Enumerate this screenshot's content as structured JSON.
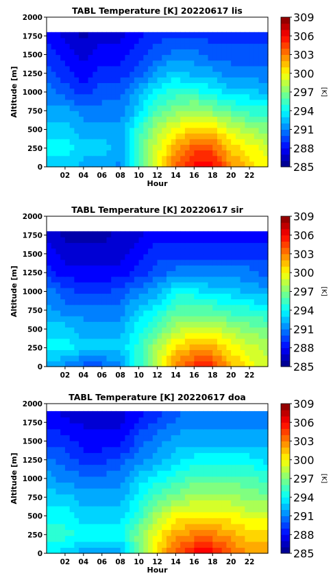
{
  "chart_data": [
    {
      "type": "heatmap",
      "title": "TABL Temperature [K]   20220617  lis",
      "xlabel": "Hour",
      "ylabel": "Altitude [m]",
      "xlim": [
        0,
        24
      ],
      "ylim": [
        0,
        2000
      ],
      "x_ticks": [
        "02",
        "04",
        "06",
        "08",
        "10",
        "12",
        "14",
        "16",
        "18",
        "20",
        "22"
      ],
      "y_ticks": [
        "0",
        "250",
        "500",
        "750",
        "1000",
        "1250",
        "1500",
        "1750",
        "2000"
      ],
      "data_top_altitude": 1800,
      "colorbar": {
        "label": "[K]",
        "min": 285,
        "max": 309,
        "ticks": [
          "285",
          "288",
          "291",
          "294",
          "297",
          "300",
          "303",
          "306",
          "309"
        ]
      },
      "values": {
        "hours": [
          0,
          2,
          4,
          6,
          8,
          10,
          12,
          14,
          16,
          18,
          20,
          22,
          24
        ],
        "altitudes": [
          0,
          250,
          500,
          750,
          1000,
          1250,
          1500,
          1800
        ],
        "temperature_K": [
          [
            293,
            293,
            292,
            292,
            291,
            296,
            300,
            304,
            306,
            306,
            303,
            301,
            300
          ],
          [
            294,
            294,
            293,
            293,
            292,
            296,
            299,
            302,
            304,
            304,
            301,
            300,
            299
          ],
          [
            293,
            293,
            292,
            292,
            292,
            295,
            298,
            300,
            301,
            301,
            299,
            298,
            297
          ],
          [
            292,
            292,
            291,
            291,
            291,
            293,
            296,
            297,
            298,
            297,
            296,
            295,
            295
          ],
          [
            291,
            290,
            289,
            290,
            290,
            292,
            294,
            295,
            295,
            294,
            293,
            293,
            292
          ],
          [
            290,
            289,
            288,
            289,
            289,
            290,
            292,
            293,
            292,
            292,
            291,
            291,
            291
          ],
          [
            289,
            288,
            287,
            288,
            288,
            289,
            290,
            291,
            291,
            290,
            290,
            290,
            290
          ],
          [
            288,
            287,
            286,
            287,
            287,
            288,
            289,
            289,
            289,
            289,
            289,
            289,
            289
          ]
        ]
      }
    },
    {
      "type": "heatmap",
      "title": "TABL Temperature [K]   20220617  sir",
      "xlabel": "",
      "ylabel": "Altitude [m]",
      "xlim": [
        0,
        24
      ],
      "ylim": [
        0,
        2000
      ],
      "x_ticks": [
        "02",
        "04",
        "06",
        "08",
        "10",
        "12",
        "14",
        "16",
        "18",
        "20",
        "22"
      ],
      "y_ticks": [
        "0",
        "250",
        "500",
        "750",
        "1000",
        "1250",
        "1500",
        "1750",
        "2000"
      ],
      "data_top_altitude": 1800,
      "colorbar": {
        "label": "[K]",
        "min": 285,
        "max": 309,
        "ticks": [
          "285",
          "288",
          "291",
          "294",
          "297",
          "300",
          "303",
          "306",
          "309"
        ]
      },
      "values": {
        "hours": [
          0,
          2,
          4,
          6,
          8,
          10,
          12,
          14,
          16,
          18,
          20,
          22,
          24
        ],
        "altitudes": [
          0,
          250,
          500,
          750,
          1000,
          1250,
          1500,
          1800
        ],
        "temperature_K": [
          [
            292,
            291,
            290,
            290,
            291,
            295,
            299,
            303,
            305,
            305,
            302,
            300,
            299
          ],
          [
            294,
            294,
            293,
            293,
            293,
            295,
            298,
            301,
            302,
            302,
            300,
            299,
            298
          ],
          [
            293,
            293,
            292,
            292,
            292,
            294,
            296,
            298,
            299,
            299,
            298,
            297,
            297
          ],
          [
            292,
            291,
            291,
            291,
            291,
            293,
            294,
            296,
            296,
            296,
            295,
            295,
            294
          ],
          [
            291,
            290,
            289,
            289,
            290,
            291,
            292,
            294,
            294,
            293,
            293,
            292,
            292
          ],
          [
            289,
            288,
            288,
            288,
            288,
            289,
            290,
            291,
            291,
            291,
            291,
            291,
            290
          ],
          [
            288,
            287,
            287,
            287,
            287,
            288,
            289,
            289,
            289,
            289,
            289,
            289,
            289
          ],
          [
            287,
            286,
            286,
            286,
            287,
            287,
            288,
            288,
            288,
            288,
            288,
            288,
            288
          ]
        ]
      }
    },
    {
      "type": "heatmap",
      "title": "TABL Temperature [K]   20220617  doa",
      "xlabel": "Hour",
      "ylabel": "Altitude [m]",
      "xlim": [
        0,
        24
      ],
      "ylim": [
        0,
        2000
      ],
      "x_ticks": [
        "02",
        "04",
        "06",
        "08",
        "10",
        "12",
        "14",
        "16",
        "18",
        "20",
        "22"
      ],
      "y_ticks": [
        "0",
        "250",
        "500",
        "750",
        "1000",
        "1250",
        "1500",
        "1750",
        "2000"
      ],
      "data_top_altitude": 1900,
      "colorbar": {
        "label": "[K]",
        "min": 285,
        "max": 309,
        "ticks": [
          "285",
          "288",
          "291",
          "294",
          "297",
          "300",
          "303",
          "306",
          "309"
        ]
      },
      "values": {
        "hours": [
          0,
          2,
          4,
          6,
          8,
          10,
          12,
          14,
          16,
          18,
          20,
          22,
          24
        ],
        "altitudes": [
          0,
          250,
          500,
          750,
          1000,
          1250,
          1500,
          1900
        ],
        "temperature_K": [
          [
            294,
            293,
            292,
            292,
            292,
            297,
            301,
            304,
            306,
            306,
            304,
            302,
            302
          ],
          [
            295,
            295,
            294,
            294,
            294,
            297,
            300,
            302,
            303,
            303,
            302,
            301,
            301
          ],
          [
            294,
            294,
            293,
            293,
            293,
            295,
            298,
            300,
            300,
            300,
            300,
            299,
            299
          ],
          [
            293,
            293,
            292,
            292,
            292,
            294,
            296,
            297,
            298,
            298,
            298,
            297,
            297
          ],
          [
            292,
            291,
            291,
            291,
            291,
            293,
            294,
            295,
            296,
            296,
            296,
            296,
            295
          ],
          [
            291,
            290,
            289,
            289,
            290,
            291,
            292,
            293,
            294,
            294,
            294,
            294,
            293
          ],
          [
            289,
            289,
            288,
            288,
            288,
            290,
            291,
            292,
            292,
            292,
            292,
            292,
            292
          ],
          [
            288,
            287,
            287,
            287,
            287,
            288,
            289,
            290,
            291,
            291,
            291,
            291,
            291
          ]
        ]
      }
    }
  ]
}
